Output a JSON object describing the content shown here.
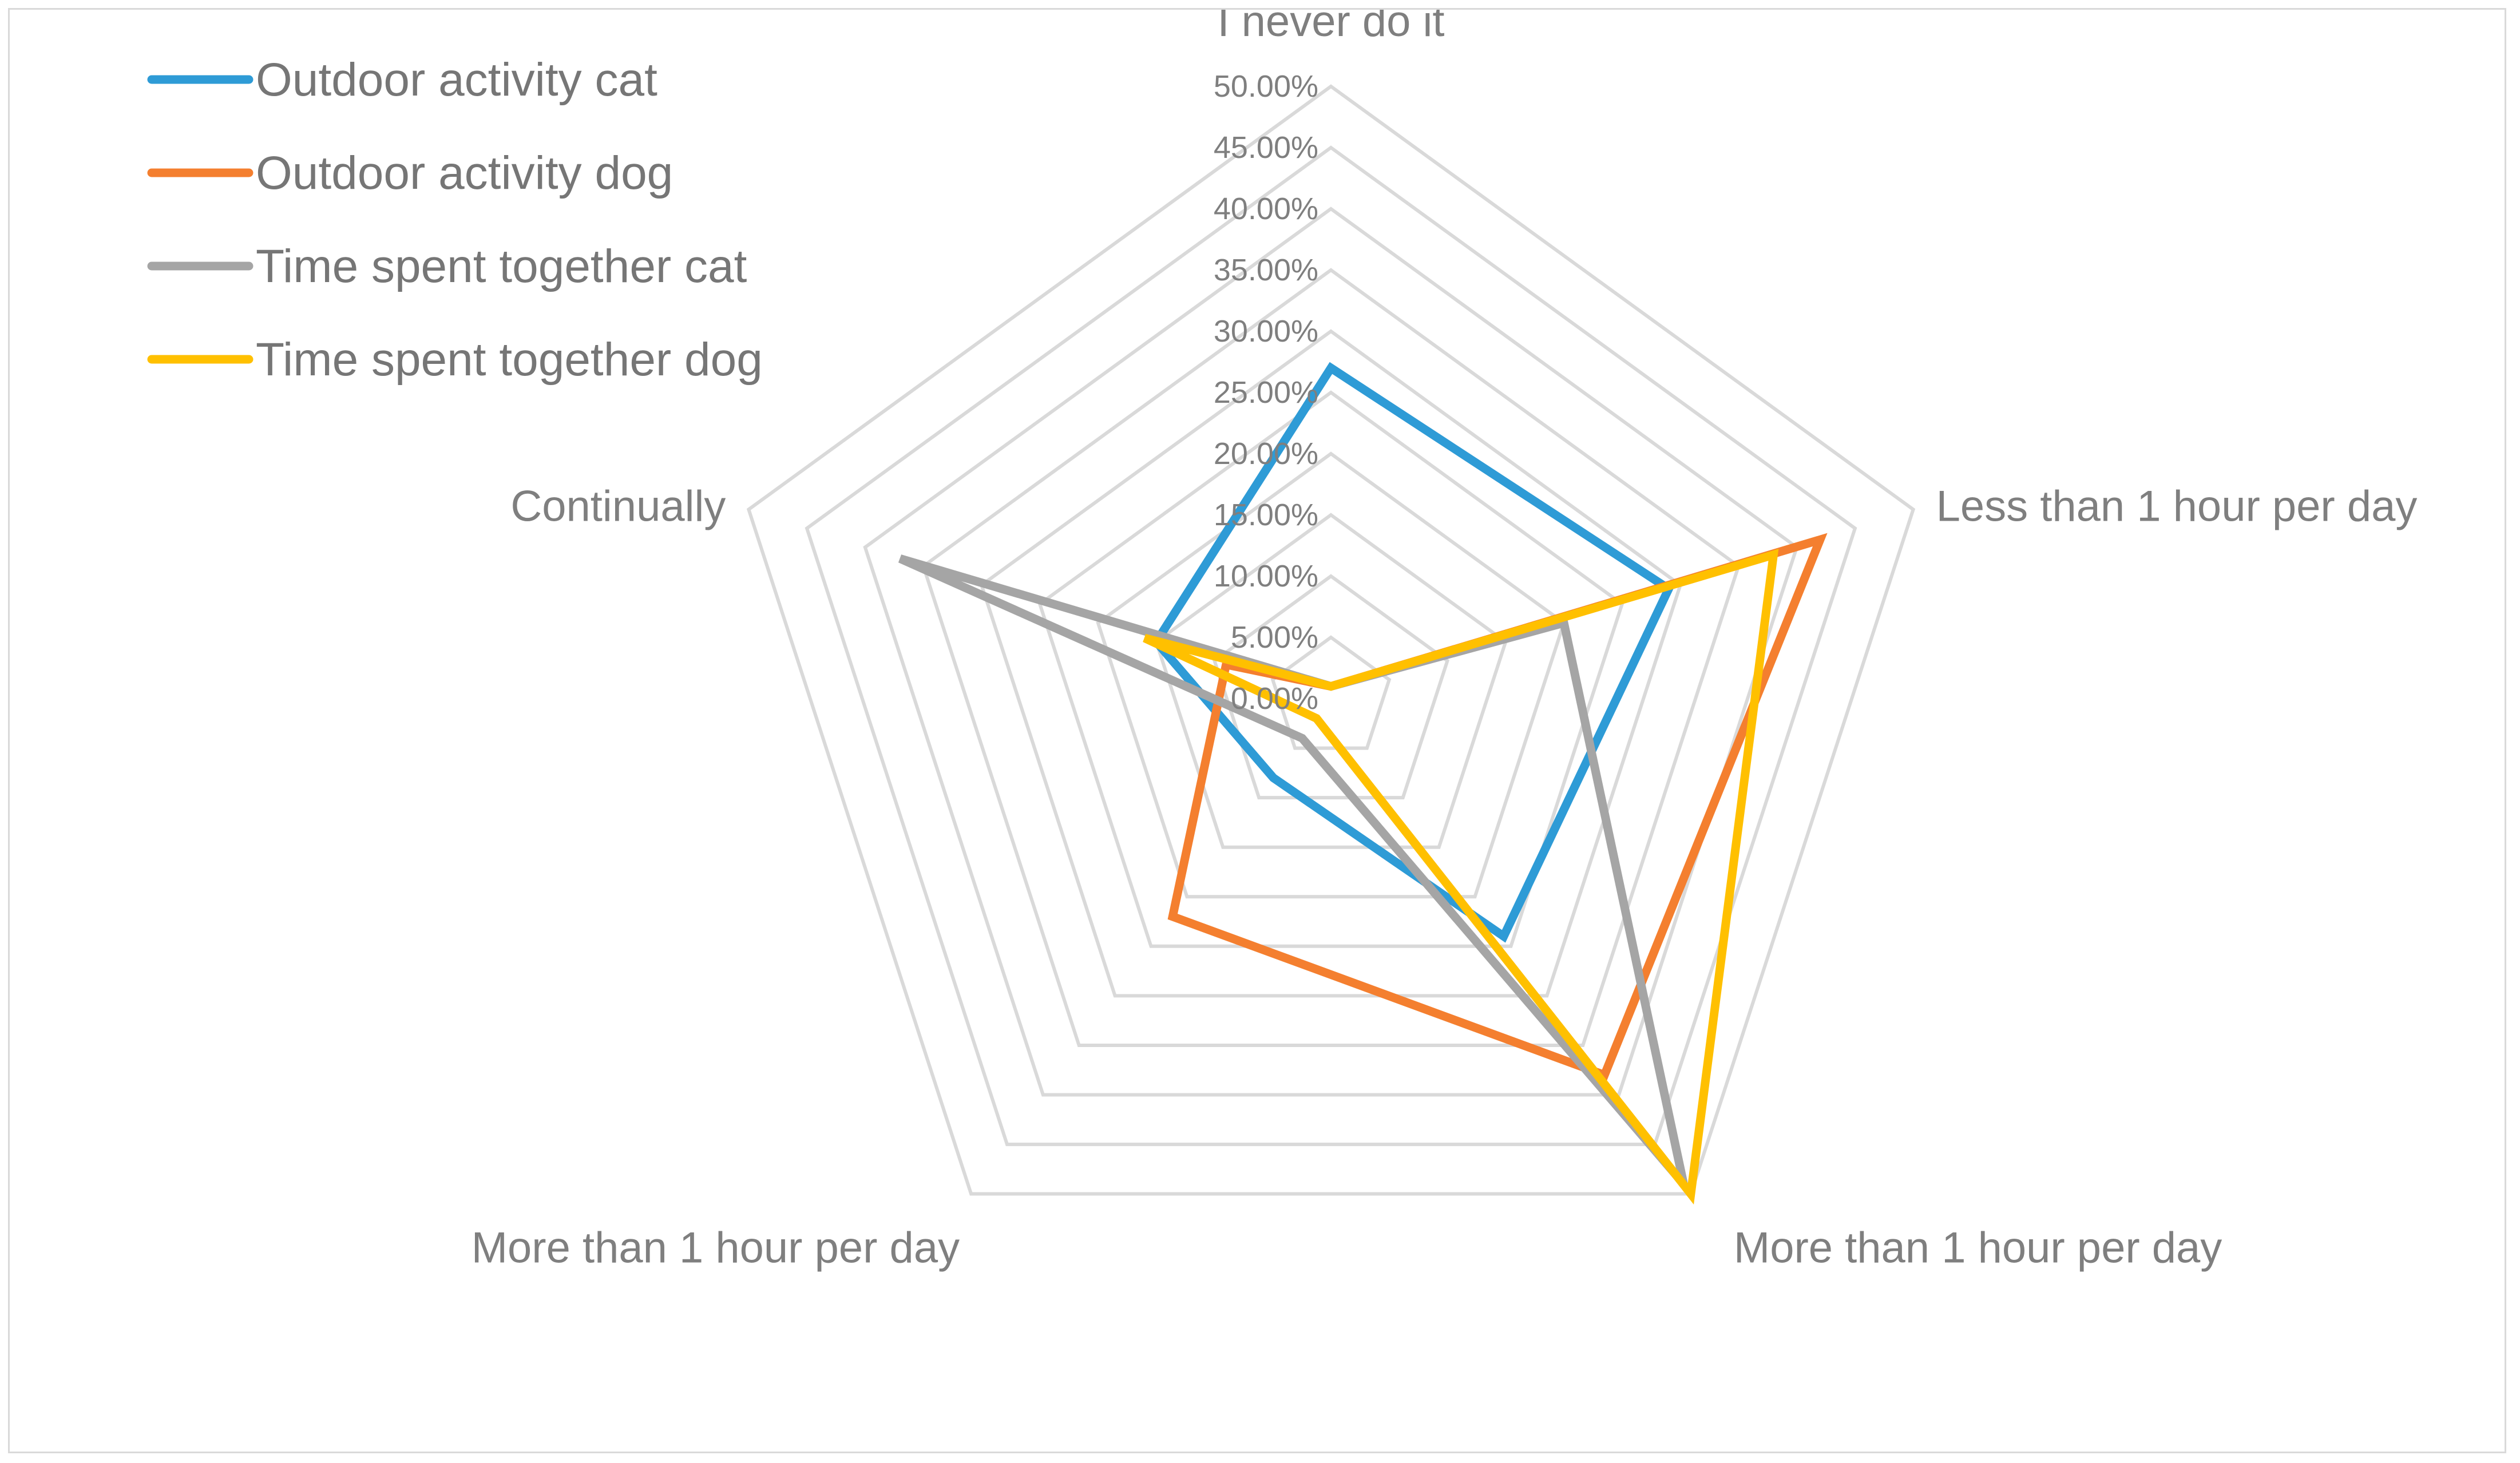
{
  "chart_data": {
    "type": "radar",
    "title": "",
    "categories": [
      "I never do it",
      "Less than 1 hour per day",
      "More than 1 hour per day",
      "More than 1 hour per day",
      "Continually"
    ],
    "radial_axis": {
      "min": 0,
      "max": 0.5,
      "step": 0.05,
      "tick_labels": [
        "0.00%",
        "5.00%",
        "10.00%",
        "15.00%",
        "20.00%",
        "25.00%",
        "30.00%",
        "35.00%",
        "40.00%",
        "45.00%",
        "50.00%"
      ]
    },
    "legend_position": "top-left",
    "series": [
      {
        "name": "Outdoor activity cat",
        "color": "#2e9bd6",
        "values": [
          0.27,
          0.29,
          0.24,
          0.08,
          0.15
        ]
      },
      {
        "name": "Outdoor activity dog",
        "color": "#f47f2f",
        "values": [
          0.01,
          0.42,
          0.38,
          0.22,
          0.09
        ]
      },
      {
        "name": "Time spent together cat",
        "color": "#a5a5a5",
        "values": [
          0.01,
          0.2,
          0.49,
          0.04,
          0.37
        ]
      },
      {
        "name": "Time spent together dog",
        "color": "#ffc000",
        "values": [
          0.01,
          0.38,
          0.5,
          0.02,
          0.16
        ]
      }
    ]
  }
}
